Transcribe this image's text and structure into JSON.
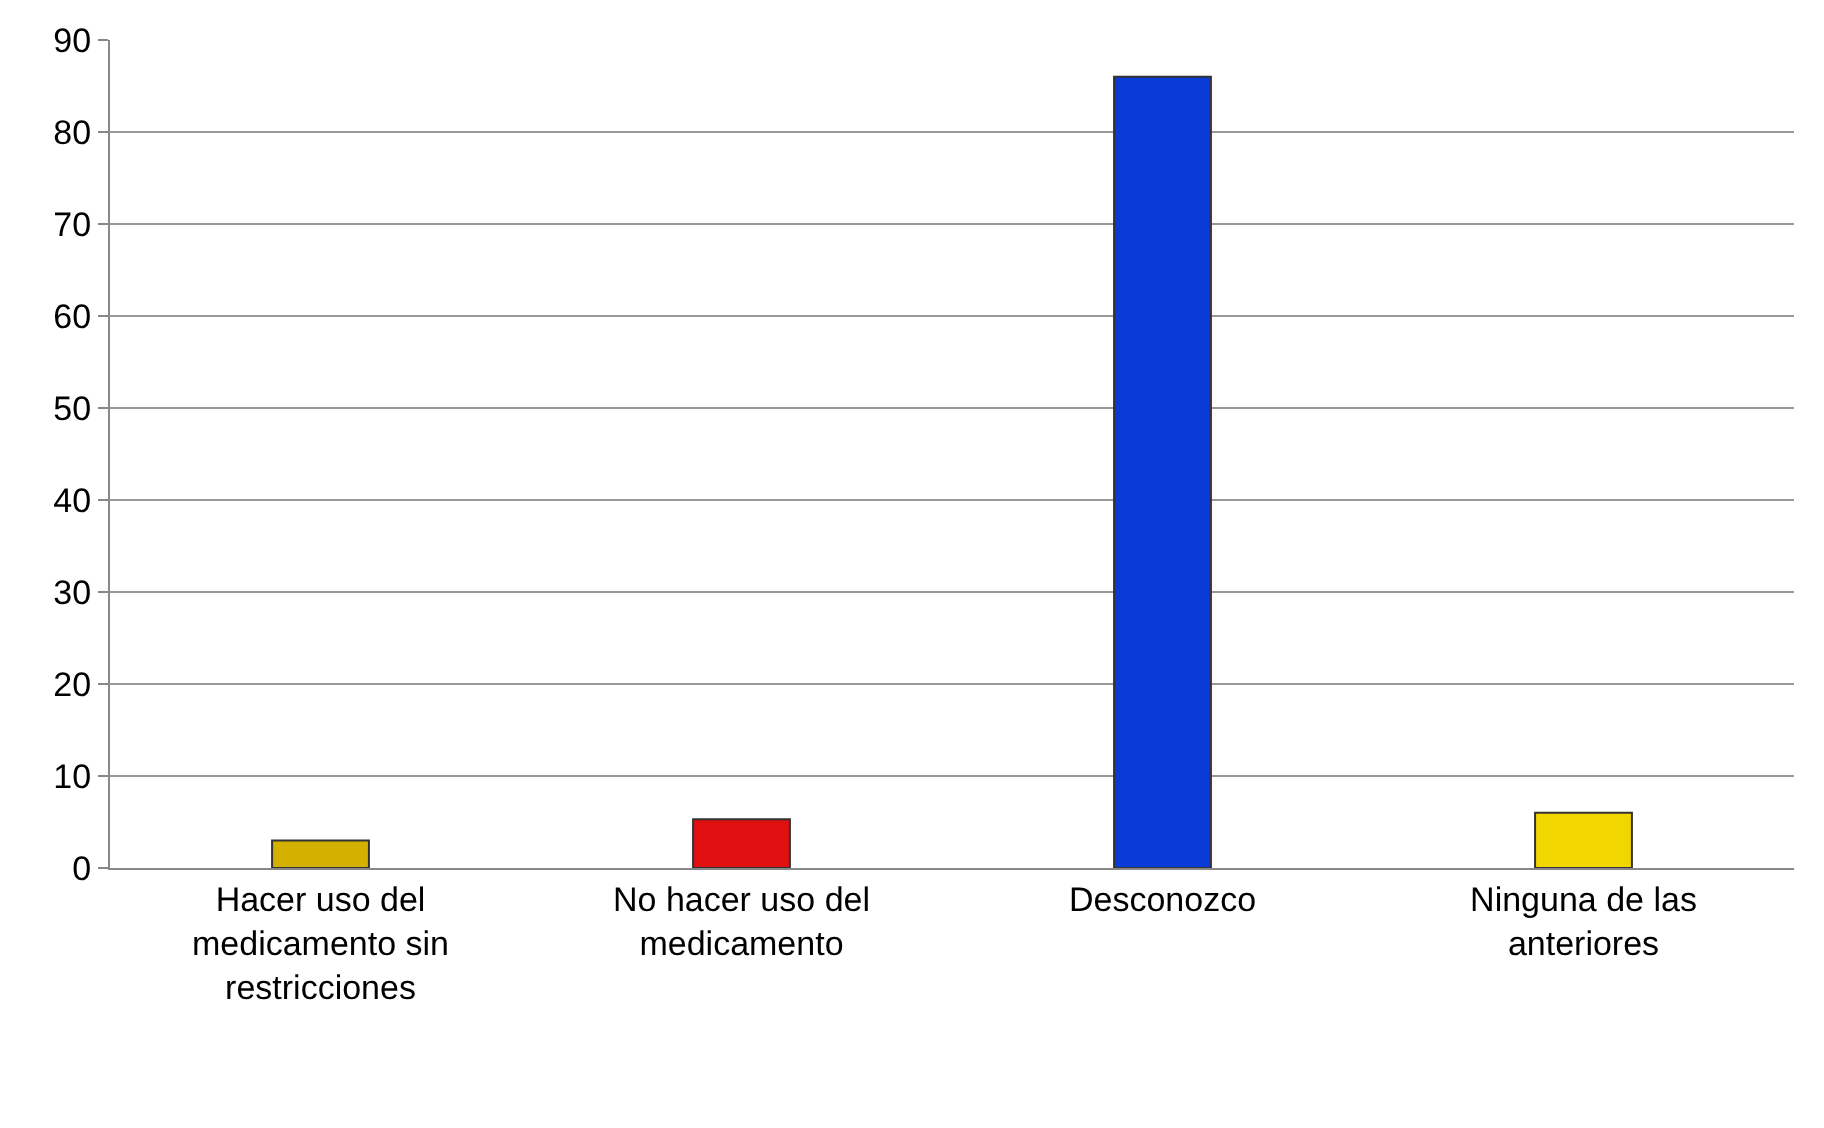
{
  "chart_data": {
    "type": "bar",
    "categories": [
      "Hacer uso del medicamento sin restricciones",
      "No hacer uso del medicamento",
      "Desconozco",
      "Ninguna de las anteriores"
    ],
    "values": [
      3,
      5.3,
      86,
      6
    ],
    "colors": [
      "#d4b000",
      "#e01010",
      "#0a3ad8",
      "#f2d600"
    ],
    "ylim": [
      0,
      90
    ],
    "yticks": [
      0,
      10,
      20,
      30,
      40,
      50,
      60,
      70,
      80,
      90
    ],
    "grid": "y"
  }
}
